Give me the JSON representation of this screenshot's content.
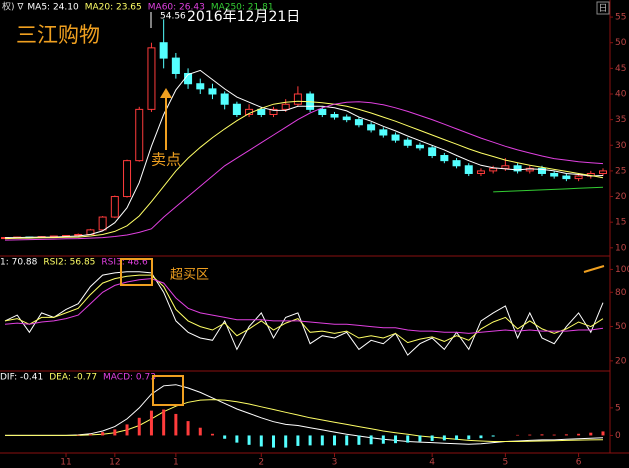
{
  "chart_data": [
    {
      "type": "candlestick",
      "title": "三江购物",
      "date_label": "2016年12月21日",
      "high_label": "54.56",
      "sell_label": "卖点",
      "header_prefix": "权) ∇",
      "corner_label": "日",
      "open": [
        11.9,
        12.0,
        12.1,
        12.0,
        12.2,
        12.3,
        12.4,
        12.6,
        13.5,
        16,
        20,
        27,
        37,
        50,
        47,
        44,
        42,
        41,
        40,
        38,
        36,
        37,
        36,
        37,
        38,
        40,
        37,
        36,
        35.5,
        35,
        34,
        33,
        32,
        31,
        30,
        29.5,
        28,
        27,
        26,
        24.5,
        25,
        25.5,
        26,
        25,
        25.5,
        24.5,
        24,
        23.5,
        24,
        24.5
      ],
      "high": [
        12.1,
        12.2,
        12.2,
        12.3,
        12.4,
        12.5,
        12.8,
        13.7,
        16.2,
        20.2,
        27.2,
        37.5,
        50,
        54.56,
        48,
        45,
        43,
        42,
        40.5,
        38.5,
        38,
        37.5,
        37.5,
        39,
        41.5,
        40.5,
        37.5,
        36.5,
        36,
        35.5,
        34.5,
        33.5,
        32.5,
        31.5,
        30.5,
        30,
        28.5,
        27.5,
        26.5,
        25.5,
        26,
        27.5,
        26.5,
        26,
        26,
        25,
        24.5,
        24.5,
        25,
        25.5
      ],
      "low": [
        11.8,
        11.9,
        11.9,
        11.9,
        12.1,
        12.2,
        12.3,
        12.5,
        13.4,
        15.8,
        19.8,
        26.8,
        36.5,
        45,
        43,
        41,
        40,
        39,
        37,
        35.5,
        35.5,
        35.5,
        35.5,
        36.5,
        37.5,
        36.5,
        35.5,
        35,
        34.5,
        33.5,
        32.5,
        31.5,
        30.5,
        29.5,
        29,
        27.5,
        26.5,
        25.5,
        24,
        24,
        24.5,
        25,
        24.5,
        24.5,
        24,
        23.5,
        23,
        23,
        23.5,
        24
      ],
      "close": [
        12.0,
        12.1,
        12.0,
        12.2,
        12.3,
        12.4,
        12.6,
        13.5,
        16,
        20,
        27,
        37,
        49,
        47,
        44,
        42,
        41,
        40,
        38,
        36,
        37,
        36,
        37,
        38,
        40,
        37,
        36,
        35.5,
        35,
        34,
        33,
        32,
        31,
        30,
        29.5,
        28,
        27,
        26,
        24.5,
        25,
        25.5,
        26,
        25,
        25.5,
        24.5,
        24,
        23.5,
        24,
        24.5,
        25
      ],
      "up_color": "#ff3c3c",
      "down_color": "#54ffff",
      "series": [
        {
          "name": "MA5: 24.10",
          "color": "#ffffff",
          "values": [
            12,
            12,
            12.05,
            12.1,
            12.1,
            12.2,
            12.3,
            12.6,
            13.3,
            14.9,
            17.8,
            22.7,
            29.8,
            36,
            40.8,
            43.8,
            44.6,
            42.8,
            41,
            39.4,
            38.4,
            37.4,
            36.8,
            36.8,
            37.6,
            37.6,
            37.6,
            37.3,
            36.7,
            35.5,
            34.7,
            33.7,
            32.8,
            31.8,
            30.9,
            30,
            29.1,
            28,
            27,
            26.1,
            25.6,
            25.4,
            25.2,
            25.4,
            25.3,
            25,
            24.5,
            24.3,
            24.0,
            24.1
          ]
        },
        {
          "name": "MA20: 23.65",
          "color": "#ffff66",
          "values": [
            11.8,
            11.85,
            11.9,
            11.95,
            12,
            12.05,
            12.1,
            12.3,
            12.6,
            13.2,
            14.3,
            16.2,
            19,
            22,
            25,
            27.5,
            29.6,
            31.5,
            33.2,
            34.8,
            36.2,
            37.2,
            38,
            38.4,
            38.6,
            38.5,
            38.3,
            38,
            37.6,
            37,
            36.3,
            35.5,
            34.7,
            33.8,
            32.9,
            32,
            31.1,
            30.2,
            29.3,
            28.5,
            27.8,
            27.1,
            26.6,
            26.1,
            25.7,
            25.3,
            24.9,
            24.5,
            24.1,
            23.65
          ]
        },
        {
          "name": "MA60: 26.43",
          "color": "#e040e0",
          "values": [
            11.5,
            11.55,
            11.6,
            11.65,
            11.7,
            11.75,
            11.8,
            11.9,
            12,
            12.2,
            12.5,
            13,
            13.7,
            16,
            18,
            20,
            22,
            24,
            26,
            27.5,
            29,
            30.5,
            32,
            33.5,
            35,
            36.3,
            37.3,
            38,
            38.4,
            38.5,
            38.3,
            37.9,
            37.3,
            36.6,
            35.8,
            35,
            34.1,
            33.2,
            32.3,
            31.4,
            30.6,
            29.8,
            29.1,
            28.5,
            27.9,
            27.4,
            27.1,
            26.8,
            26.6,
            26.43
          ]
        },
        {
          "name": "MA250: 21.81",
          "color": "#33cc33",
          "values": [
            null,
            null,
            null,
            null,
            null,
            null,
            null,
            null,
            null,
            null,
            null,
            null,
            null,
            null,
            null,
            null,
            null,
            null,
            null,
            null,
            null,
            null,
            null,
            null,
            null,
            null,
            null,
            null,
            null,
            null,
            null,
            null,
            null,
            null,
            null,
            null,
            null,
            null,
            null,
            null,
            20.9,
            21,
            21.1,
            21.2,
            21.3,
            21.4,
            21.5,
            21.6,
            21.7,
            21.81
          ]
        }
      ],
      "ylim": [
        8.6,
        55.6
      ],
      "yticks": [
        10,
        15,
        20,
        25,
        30,
        35,
        40,
        45,
        50,
        55
      ]
    },
    {
      "type": "line",
      "annotation": "超买区",
      "series": [
        {
          "name": "1: 70.88",
          "color": "#ffffff",
          "values": [
            55,
            60,
            45,
            62,
            58,
            65,
            70,
            85,
            95,
            97,
            98,
            98,
            97,
            80,
            55,
            45,
            40,
            38,
            55,
            30,
            50,
            62,
            40,
            58,
            62,
            35,
            42,
            40,
            45,
            30,
            38,
            35,
            44,
            25,
            35,
            40,
            30,
            45,
            30,
            55,
            62,
            68,
            40,
            62,
            40,
            35,
            50,
            62,
            45,
            70.88
          ]
        },
        {
          "name": "RSI2: 56.85",
          "color": "#ffff66",
          "values": [
            55,
            57,
            52,
            58,
            58,
            62,
            66,
            78,
            88,
            92,
            94,
            95,
            95,
            85,
            65,
            55,
            50,
            47,
            53,
            42,
            48,
            55,
            47,
            53,
            57,
            45,
            46,
            44,
            46,
            40,
            42,
            40,
            44,
            36,
            39,
            41,
            37,
            42,
            38,
            48,
            54,
            58,
            48,
            55,
            48,
            44,
            48,
            54,
            50,
            56.85
          ]
        },
        {
          "name": "RSI3: 48.6",
          "color": "#e040e0",
          "values": [
            52,
            53,
            52,
            54,
            55,
            57,
            60,
            70,
            80,
            86,
            89,
            91,
            92,
            88,
            75,
            66,
            62,
            60,
            58,
            56,
            56,
            56,
            55,
            55,
            55,
            54,
            53,
            52,
            52,
            51,
            50,
            49,
            49,
            47,
            46,
            46,
            45,
            45,
            44,
            45,
            46,
            47,
            46,
            47,
            46,
            46,
            46,
            47,
            47,
            48.6
          ]
        }
      ],
      "ylim": [
        12,
        110
      ],
      "yticks": [
        20,
        50,
        80,
        100
      ]
    },
    {
      "type": "line",
      "series": [
        {
          "name": "DIF: -0.41",
          "color": "#ffffff",
          "values": [
            0,
            0,
            0,
            0,
            0,
            0,
            0.1,
            0.3,
            0.8,
            1.6,
            3,
            5,
            7.5,
            9,
            9.2,
            8.6,
            7.8,
            6.8,
            5.8,
            4.8,
            4,
            3.2,
            2.5,
            2,
            1.8,
            1.4,
            1,
            0.6,
            0.2,
            -0.1,
            -0.4,
            -0.7,
            -0.9,
            -1.1,
            -1.2,
            -1.3,
            -1.4,
            -1.5,
            -1.6,
            -1.5,
            -1.3,
            -1.1,
            -1,
            -0.9,
            -0.8,
            -0.8,
            -0.7,
            -0.6,
            -0.5,
            -0.41
          ]
        },
        {
          "name": "DEA: -0.77",
          "color": "#ffff66",
          "values": [
            0,
            0,
            0,
            0,
            0,
            0,
            0,
            0.1,
            0.2,
            0.5,
            1,
            1.8,
            3,
            4.3,
            5.3,
            6,
            6.4,
            6.5,
            6.4,
            6.1,
            5.7,
            5.2,
            4.7,
            4.2,
            3.7,
            3.2,
            2.8,
            2.4,
            2,
            1.6,
            1.2,
            0.8,
            0.5,
            0.2,
            -0.1,
            -0.3,
            -0.5,
            -0.7,
            -0.9,
            -1,
            -1.1,
            -1.1,
            -1.1,
            -1.05,
            -1,
            -0.95,
            -0.9,
            -0.85,
            -0.8,
            -0.77
          ]
        },
        {
          "name": "MACD: 0.73",
          "color": "#e040e0",
          "kind": "bar",
          "up_color": "#ff3c3c",
          "down_color": "#54ffff",
          "values": [
            0,
            0,
            0,
            0,
            0,
            0,
            0.1,
            0.2,
            0.6,
            1.1,
            2,
            3.2,
            4.5,
            4.7,
            3.9,
            2.6,
            1.4,
            0.3,
            -0.6,
            -1.3,
            -1.7,
            -2,
            -2.2,
            -2.2,
            -1.9,
            -1.8,
            -1.8,
            -1.8,
            -1.8,
            -1.7,
            -1.6,
            -1.5,
            -1.4,
            -1.3,
            -1.1,
            -1,
            -0.9,
            -0.8,
            -0.7,
            -0.5,
            -0.2,
            0,
            0.1,
            0.15,
            0.2,
            0.15,
            0.2,
            0.3,
            0.5,
            0.73
          ]
        }
      ],
      "ylim": [
        -3,
        11.5
      ],
      "yticks": [
        0,
        5
      ],
      "xticks": [
        {
          "value": 5,
          "label": "11"
        },
        {
          "value": 9,
          "label": "12"
        },
        {
          "value": 14,
          "label": "1"
        },
        {
          "value": 21,
          "label": "2"
        },
        {
          "value": 27,
          "label": "3"
        },
        {
          "value": 35,
          "label": "4"
        },
        {
          "value": 41,
          "label": "5"
        },
        {
          "value": 47,
          "label": "6"
        }
      ]
    }
  ]
}
